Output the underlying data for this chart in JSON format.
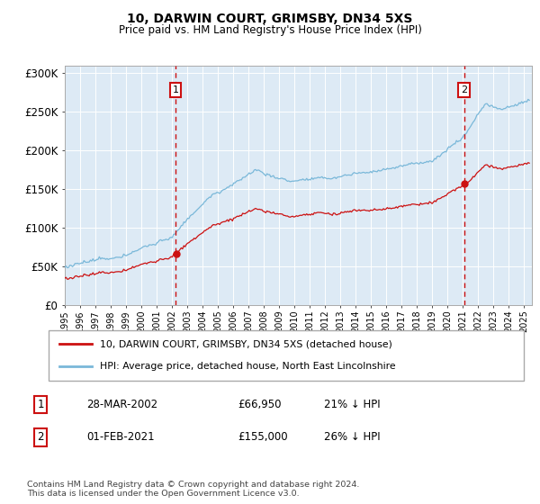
{
  "title": "10, DARWIN COURT, GRIMSBY, DN34 5XS",
  "subtitle": "Price paid vs. HM Land Registry's House Price Index (HPI)",
  "ylabel_ticks": [
    "£0",
    "£50K",
    "£100K",
    "£150K",
    "£200K",
    "£250K",
    "£300K"
  ],
  "ytick_values": [
    0,
    50000,
    100000,
    150000,
    200000,
    250000,
    300000
  ],
  "ylim": [
    0,
    310000
  ],
  "xlim_start": 1995.0,
  "xlim_end": 2025.5,
  "hpi_color": "#7ab8d9",
  "price_color": "#cc1111",
  "vline_color": "#cc1111",
  "background_color": "#ddeaf5",
  "marker1_year": 2002.24,
  "marker2_year": 2021.08,
  "marker1_price": 66950,
  "marker2_price": 155000,
  "legend_entry1": "10, DARWIN COURT, GRIMSBY, DN34 5XS (detached house)",
  "legend_entry2": "HPI: Average price, detached house, North East Lincolnshire",
  "table_row1_num": "1",
  "table_row1_date": "28-MAR-2002",
  "table_row1_price": "£66,950",
  "table_row1_hpi": "21% ↓ HPI",
  "table_row2_num": "2",
  "table_row2_date": "01-FEB-2021",
  "table_row2_price": "£155,000",
  "table_row2_hpi": "26% ↓ HPI",
  "footnote": "Contains HM Land Registry data © Crown copyright and database right 2024.\nThis data is licensed under the Open Government Licence v3.0.",
  "grid_color": "#ffffff"
}
